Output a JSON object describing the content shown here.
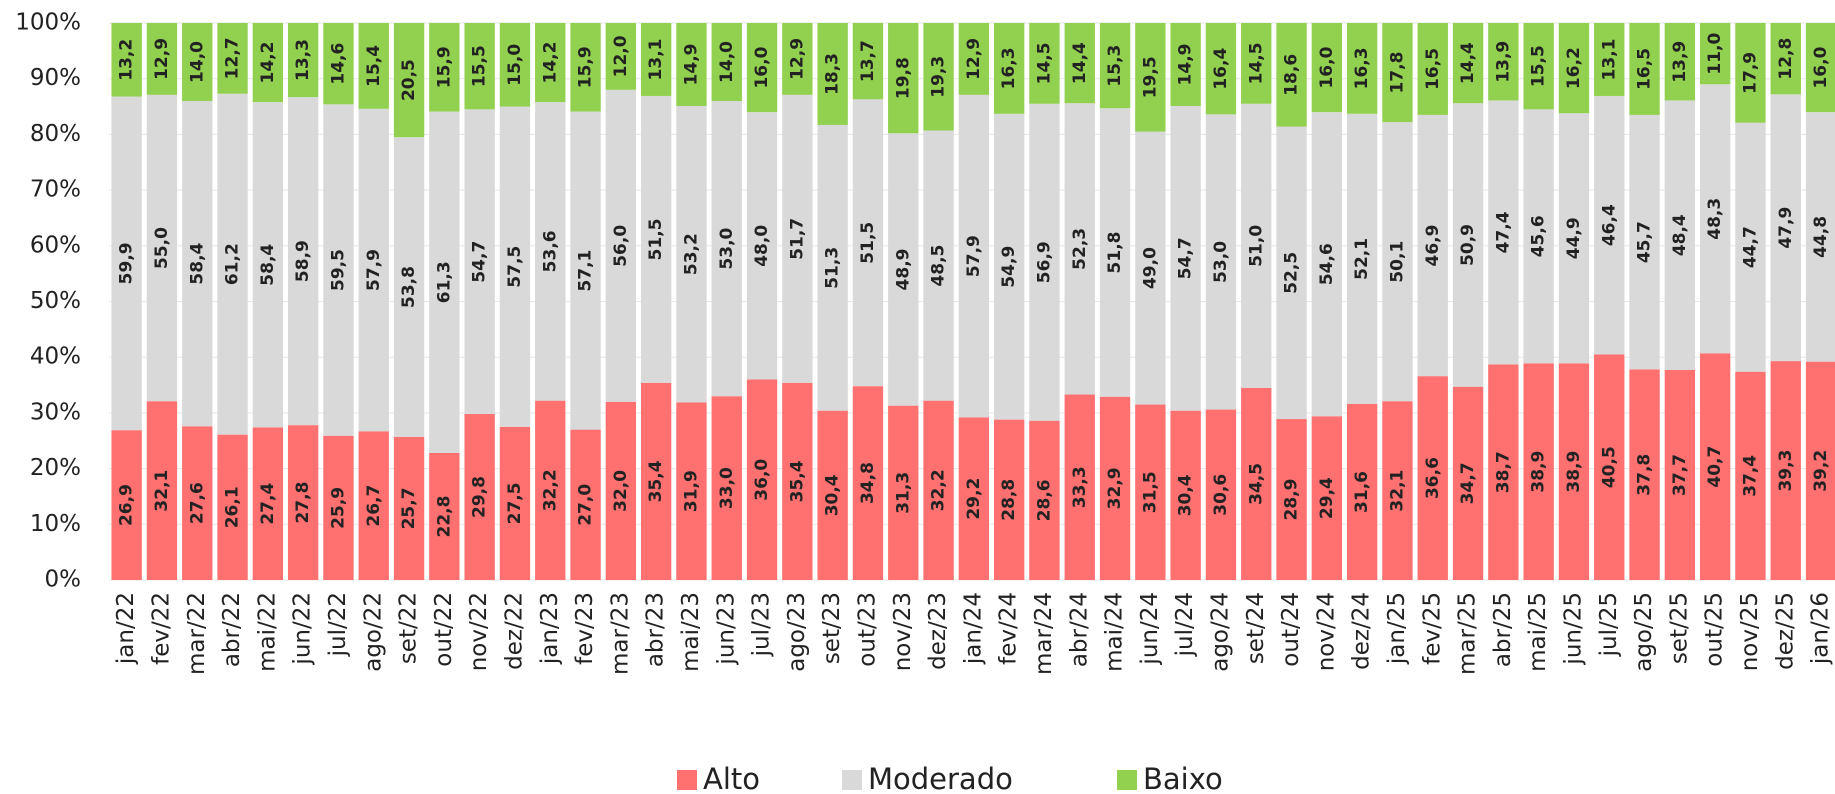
{
  "chart_data": {
    "type": "stacked_bar",
    "categories": [
      "jan/22",
      "fev/22",
      "mar/22",
      "abr/22",
      "mai/22",
      "jun/22",
      "jul/22",
      "ago/22",
      "set/22",
      "out/22",
      "nov/22",
      "dez/22",
      "jan/23",
      "fev/23",
      "mar/23",
      "abr/23",
      "mai/23",
      "jun/23",
      "jul/23",
      "ago/23",
      "set/23",
      "out/23",
      "nov/23",
      "dez/23",
      "jan/24",
      "fev/24",
      "mar/24",
      "abr/24",
      "mai/24",
      "jun/24",
      "jul/24",
      "ago/24",
      "set/24",
      "out/24",
      "nov/24",
      "dez/24",
      "jan/25",
      "fev/25",
      "mar/25",
      "abr/25",
      "mai/25",
      "jun/25",
      "jul/25",
      "ago/25",
      "set/25",
      "out/25",
      "nov/25",
      "dez/25",
      "jan/26"
    ],
    "series": [
      {
        "name": "Alto",
        "color": "#ff7070",
        "values": [
          26.9,
          32.1,
          27.6,
          26.1,
          27.4,
          27.8,
          25.9,
          26.7,
          25.7,
          22.8,
          29.8,
          27.5,
          32.2,
          27.0,
          32.0,
          35.4,
          31.9,
          33.0,
          36.0,
          35.4,
          30.4,
          34.8,
          31.3,
          32.2,
          29.2,
          28.8,
          28.6,
          33.3,
          32.9,
          31.5,
          30.4,
          30.6,
          34.5,
          28.9,
          29.4,
          31.6,
          32.1,
          36.6,
          34.7,
          38.7,
          38.9,
          38.9,
          40.5,
          37.8,
          37.7,
          40.7,
          37.4,
          39.3,
          39.2
        ],
        "value_labels": [
          "26,9",
          "32,1",
          "27,6",
          "26,1",
          "27,4",
          "27,8",
          "25,9",
          "26,7",
          "25,7",
          "22,8",
          "29,8",
          "27,5",
          "32,2",
          "27,0",
          "32,0",
          "35,4",
          "31,9",
          "33,0",
          "36,0",
          "35,4",
          "30,4",
          "34,8",
          "31,3",
          "32,2",
          "29,2",
          "28,8",
          "28,6",
          "33,3",
          "32,9",
          "31,5",
          "30,4",
          "30,6",
          "34,5",
          "28,9",
          "29,4",
          "31,6",
          "32,1",
          "36,6",
          "34,7",
          "38,7",
          "38,9",
          "38,9",
          "40,5",
          "37,8",
          "37,7",
          "40,7",
          "37,4",
          "39,3",
          "39,2"
        ]
      },
      {
        "name": "Moderado",
        "color": "#d9d9d9",
        "values": [
          59.9,
          55.0,
          58.4,
          61.2,
          58.4,
          58.9,
          59.5,
          57.9,
          53.8,
          61.3,
          54.7,
          57.5,
          53.6,
          57.1,
          56.0,
          51.5,
          53.2,
          53.0,
          48.0,
          51.7,
          51.3,
          51.5,
          48.9,
          48.5,
          57.9,
          54.9,
          56.9,
          52.3,
          51.8,
          49.0,
          54.7,
          53.0,
          51.0,
          52.5,
          54.6,
          52.1,
          50.1,
          46.9,
          50.9,
          47.4,
          45.6,
          44.9,
          46.4,
          45.7,
          48.4,
          48.3,
          44.7,
          47.9,
          44.8
        ],
        "value_labels": [
          "59,9",
          "55,0",
          "58,4",
          "61,2",
          "58,4",
          "58,9",
          "59,5",
          "57,9",
          "53,8",
          "61,3",
          "54,7",
          "57,5",
          "53,6",
          "57,1",
          "56,0",
          "51,5",
          "53,2",
          "53,0",
          "48,0",
          "51,7",
          "51,3",
          "51,5",
          "48,9",
          "48,5",
          "57,9",
          "54,9",
          "56,9",
          "52,3",
          "51,8",
          "49,0",
          "54,7",
          "53,0",
          "51,0",
          "52,5",
          "54,6",
          "52,1",
          "50,1",
          "46,9",
          "50,9",
          "47,4",
          "45,6",
          "44,9",
          "46,4",
          "45,7",
          "48,4",
          "48,3",
          "44,7",
          "47,9",
          "44,8"
        ]
      },
      {
        "name": "Baixo",
        "color": "#92d050",
        "values": [
          13.2,
          12.9,
          14.0,
          12.7,
          14.2,
          13.3,
          14.6,
          15.4,
          20.5,
          15.9,
          15.5,
          15.0,
          14.2,
          15.9,
          12.0,
          13.1,
          14.9,
          14.0,
          16.0,
          12.9,
          18.3,
          13.7,
          19.8,
          19.3,
          12.9,
          16.3,
          14.5,
          14.4,
          15.3,
          19.5,
          14.9,
          16.4,
          14.5,
          18.6,
          16.0,
          16.3,
          17.8,
          16.5,
          14.4,
          13.9,
          15.5,
          16.2,
          13.1,
          16.5,
          13.9,
          11.0,
          17.9,
          12.8,
          16.0
        ],
        "value_labels": [
          "13,2",
          "12,9",
          "14,0",
          "12,7",
          "14,2",
          "13,3",
          "14,6",
          "15,4",
          "20,5",
          "15,9",
          "15,5",
          "15,0",
          "14,2",
          "15,9",
          "12,0",
          "13,1",
          "14,9",
          "14,0",
          "16,0",
          "12,9",
          "18,3",
          "13,7",
          "19,8",
          "19,3",
          "12,9",
          "16,3",
          "14,5",
          "14,4",
          "15,3",
          "19,5",
          "14,9",
          "16,4",
          "14,5",
          "18,6",
          "16,0",
          "16,3",
          "17,8",
          "16,5",
          "14,4",
          "13,9",
          "15,5",
          "16,2",
          "13,1",
          "16,5",
          "13,9",
          "11,0",
          "17,9",
          "12,8",
          "16,0"
        ]
      }
    ],
    "ylim": [
      0,
      100
    ],
    "yticks": [
      {
        "value": 0,
        "label": "0%"
      },
      {
        "value": 10,
        "label": "10%"
      },
      {
        "value": 20,
        "label": "20%"
      },
      {
        "value": 30,
        "label": "30%"
      },
      {
        "value": 40,
        "label": "40%"
      },
      {
        "value": 50,
        "label": "50%"
      },
      {
        "value": 60,
        "label": "60%"
      },
      {
        "value": 70,
        "label": "70%"
      },
      {
        "value": 80,
        "label": "80%"
      },
      {
        "value": 90,
        "label": "90%"
      },
      {
        "value": 100,
        "label": "100%"
      }
    ],
    "grid": true,
    "legend": "bottom"
  }
}
